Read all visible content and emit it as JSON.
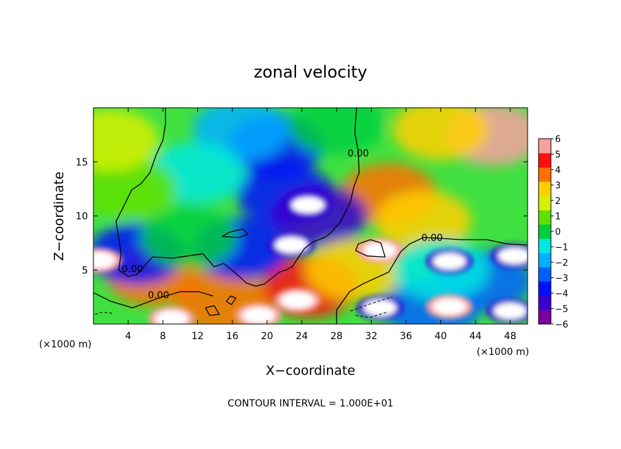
{
  "chart_data": {
    "type": "heatmap",
    "title": "zonal velocity",
    "xlabel": "X−coordinate",
    "ylabel": "Z−coordinate",
    "x_unit_left": "(×1000 m)",
    "x_unit_right": "(×1000 m)",
    "footer": "CONTOUR INTERVAL = 1.000E+01",
    "xlim": [
      0,
      50
    ],
    "ylim": [
      0,
      20
    ],
    "x_ticks": [
      4,
      8,
      12,
      16,
      20,
      24,
      28,
      32,
      36,
      40,
      44,
      48
    ],
    "y_ticks": [
      5,
      10,
      15
    ],
    "colorbar_ticks": [
      6,
      5,
      4,
      3,
      2,
      1,
      0,
      -1,
      -2,
      -3,
      -4,
      -5,
      -6
    ],
    "colorbar_labels": [
      "6",
      "5",
      "4",
      "3",
      "2",
      "1",
      "0",
      "−1",
      "−2",
      "−3",
      "−4",
      "−5",
      "−6"
    ],
    "colorbar_range": [
      -6,
      6
    ],
    "colormap": [
      "#7a00a0",
      "#3a00d0",
      "#0010ff",
      "#0060ff",
      "#00b0ff",
      "#00e8e0",
      "#00d040",
      "#60e000",
      "#d8f000",
      "#ffd000",
      "#ff7000",
      "#ff1010",
      "#f8a0a0"
    ],
    "saturated_color": "#ffffff",
    "contour_labels": [
      "0.00",
      "0.00",
      "0.00",
      "0.00"
    ],
    "contour_label_positions": [
      [
        4.5,
        5.1
      ],
      [
        7.5,
        2.7
      ],
      [
        30.5,
        15.8
      ],
      [
        39.0,
        8.0
      ]
    ],
    "velocity_features": [
      {
        "x": 46.0,
        "z": 17.5,
        "value": 6
      },
      {
        "x": 34.0,
        "z": 12.0,
        "value": 4
      },
      {
        "x": 38.0,
        "z": 9.5,
        "value": 3
      },
      {
        "x": 7.0,
        "z": 4.5,
        "value": 4
      },
      {
        "x": 15.0,
        "z": 2.0,
        "value": 4
      },
      {
        "x": 25.0,
        "z": 3.5,
        "value": 5
      },
      {
        "x": 45.0,
        "z": 4.0,
        "value": -3
      },
      {
        "x": 39.0,
        "z": 1.5,
        "value": -3
      },
      {
        "x": 22.0,
        "z": 12.0,
        "value": -4
      },
      {
        "x": 21.0,
        "z": 16.5,
        "value": -4
      },
      {
        "x": 26.0,
        "z": 10.0,
        "value": -5
      },
      {
        "x": 17.0,
        "z": 7.0,
        "value": -4
      },
      {
        "x": 5.0,
        "z": 6.5,
        "value": -4
      },
      {
        "x": 17.0,
        "z": 18.0,
        "value": -2
      },
      {
        "x": 12.0,
        "z": 14.0,
        "value": -1
      },
      {
        "x": 4.0,
        "z": 12.5,
        "value": 1
      },
      {
        "x": 2.0,
        "z": 17.0,
        "value": 2
      },
      {
        "x": 40.0,
        "z": 18.0,
        "value": 3
      },
      {
        "x": 28.0,
        "z": 18.5,
        "value": 0
      },
      {
        "x": 11.0,
        "z": 8.0,
        "value": 0
      },
      {
        "x": 30.0,
        "z": 5.0,
        "value": 3
      },
      {
        "x": 40.0,
        "z": 5.0,
        "value": -1
      }
    ],
    "saturated_regions": [
      {
        "x": 24.7,
        "z": 11.0,
        "sign": "negative"
      },
      {
        "x": 22.8,
        "z": 7.3,
        "sign": "negative"
      },
      {
        "x": 33.0,
        "z": 6.8,
        "sign": "positive"
      },
      {
        "x": 41.0,
        "z": 5.8,
        "sign": "negative"
      },
      {
        "x": 48.5,
        "z": 6.3,
        "sign": "negative"
      },
      {
        "x": 0.6,
        "z": 5.9,
        "sign": "positive"
      },
      {
        "x": 23.5,
        "z": 2.2,
        "sign": "positive"
      },
      {
        "x": 19.0,
        "z": 0.8,
        "sign": "positive"
      },
      {
        "x": 9.0,
        "z": 0.5,
        "sign": "positive"
      },
      {
        "x": 33.0,
        "z": 1.5,
        "sign": "negative"
      },
      {
        "x": 48.0,
        "z": 1.2,
        "sign": "negative"
      },
      {
        "x": 41.0,
        "z": 1.6,
        "sign": "positive"
      }
    ],
    "zero_contours": [
      [
        [
          8.3,
          20
        ],
        [
          8.3,
          18.5
        ],
        [
          8.0,
          17.0
        ],
        [
          7.2,
          15.6
        ],
        [
          6.5,
          14.0
        ],
        [
          5.5,
          13.0
        ],
        [
          4.4,
          12.4
        ],
        [
          3.5,
          10.9
        ],
        [
          2.6,
          9.5
        ],
        [
          3.2,
          6.5
        ],
        [
          2.9,
          5.0
        ],
        [
          4.0,
          4.4
        ],
        [
          5.0,
          4.6
        ],
        [
          6.8,
          6.2
        ],
        [
          9.2,
          6.1
        ],
        [
          11.7,
          6.4
        ],
        [
          12.6,
          6.5
        ],
        [
          13.9,
          5.3
        ],
        [
          15.0,
          5.6
        ],
        [
          16.1,
          4.9
        ],
        [
          17.6,
          3.8
        ],
        [
          18.7,
          3.5
        ],
        [
          19.7,
          3.7
        ],
        [
          21.4,
          4.8
        ],
        [
          22.2,
          5.0
        ],
        [
          22.9,
          5.3
        ],
        [
          24.3,
          7.0
        ],
        [
          25.3,
          7.6
        ],
        [
          26.6,
          8.0
        ],
        [
          27.3,
          8.4
        ],
        [
          28.5,
          9.5
        ],
        [
          29.6,
          11.3
        ],
        [
          30.0,
          12.7
        ],
        [
          30.6,
          14.0
        ],
        [
          30.5,
          16.0
        ],
        [
          30.1,
          17.7
        ],
        [
          30.2,
          18.8
        ],
        [
          30.3,
          20
        ]
      ],
      [
        [
          0,
          2.9
        ],
        [
          2.0,
          2.1
        ],
        [
          4.5,
          1.5
        ],
        [
          7.5,
          2.4
        ],
        [
          10.0,
          3.0
        ],
        [
          12.1,
          3.0
        ],
        [
          13.8,
          2.6
        ]
      ],
      [
        [
          28.0,
          0
        ],
        [
          28.0,
          1.3
        ],
        [
          29.5,
          3.0
        ],
        [
          31.0,
          3.7
        ],
        [
          34.0,
          4.8
        ],
        [
          35.4,
          6.7
        ],
        [
          36.4,
          7.4
        ],
        [
          38.0,
          8.0
        ],
        [
          40.6,
          7.9
        ],
        [
          42.3,
          7.8
        ],
        [
          45.3,
          7.8
        ],
        [
          47.7,
          7.4
        ],
        [
          50,
          7.3
        ]
      ],
      [
        [
          33.6,
          6.2
        ],
        [
          33.1,
          7.5
        ],
        [
          31.9,
          7.8
        ],
        [
          30.5,
          7.4
        ],
        [
          30.2,
          6.8
        ],
        [
          31.5,
          6.3
        ],
        [
          33.6,
          6.2
        ]
      ],
      [
        [
          12.9,
          1.5
        ],
        [
          13.4,
          0.8
        ],
        [
          14.5,
          0.9
        ],
        [
          13.9,
          1.7
        ],
        [
          12.9,
          1.5
        ]
      ],
      [
        [
          15.3,
          2.1
        ],
        [
          15.8,
          2.6
        ],
        [
          16.4,
          2.4
        ],
        [
          15.9,
          1.8
        ],
        [
          15.3,
          2.1
        ]
      ],
      [
        [
          14.8,
          8.1
        ],
        [
          15.7,
          8.5
        ],
        [
          17.2,
          8.8
        ],
        [
          17.8,
          8.3
        ],
        [
          16.7,
          8.0
        ],
        [
          14.8,
          8.1
        ]
      ]
    ],
    "negative_dashed_contours": [
      [
        [
          29.6,
          1.2
        ],
        [
          31.0,
          1.6
        ],
        [
          32.0,
          1.9
        ],
        [
          33.2,
          2.2
        ],
        [
          34.4,
          2.5
        ]
      ],
      [
        [
          30.2,
          0.8
        ],
        [
          31.8,
          0.6
        ],
        [
          33.8,
          1.1
        ]
      ],
      [
        [
          0.2,
          0.9
        ],
        [
          1.0,
          1.1
        ],
        [
          2.2,
          1.0
        ]
      ]
    ],
    "grid": false,
    "legend": "colorbar-right"
  }
}
